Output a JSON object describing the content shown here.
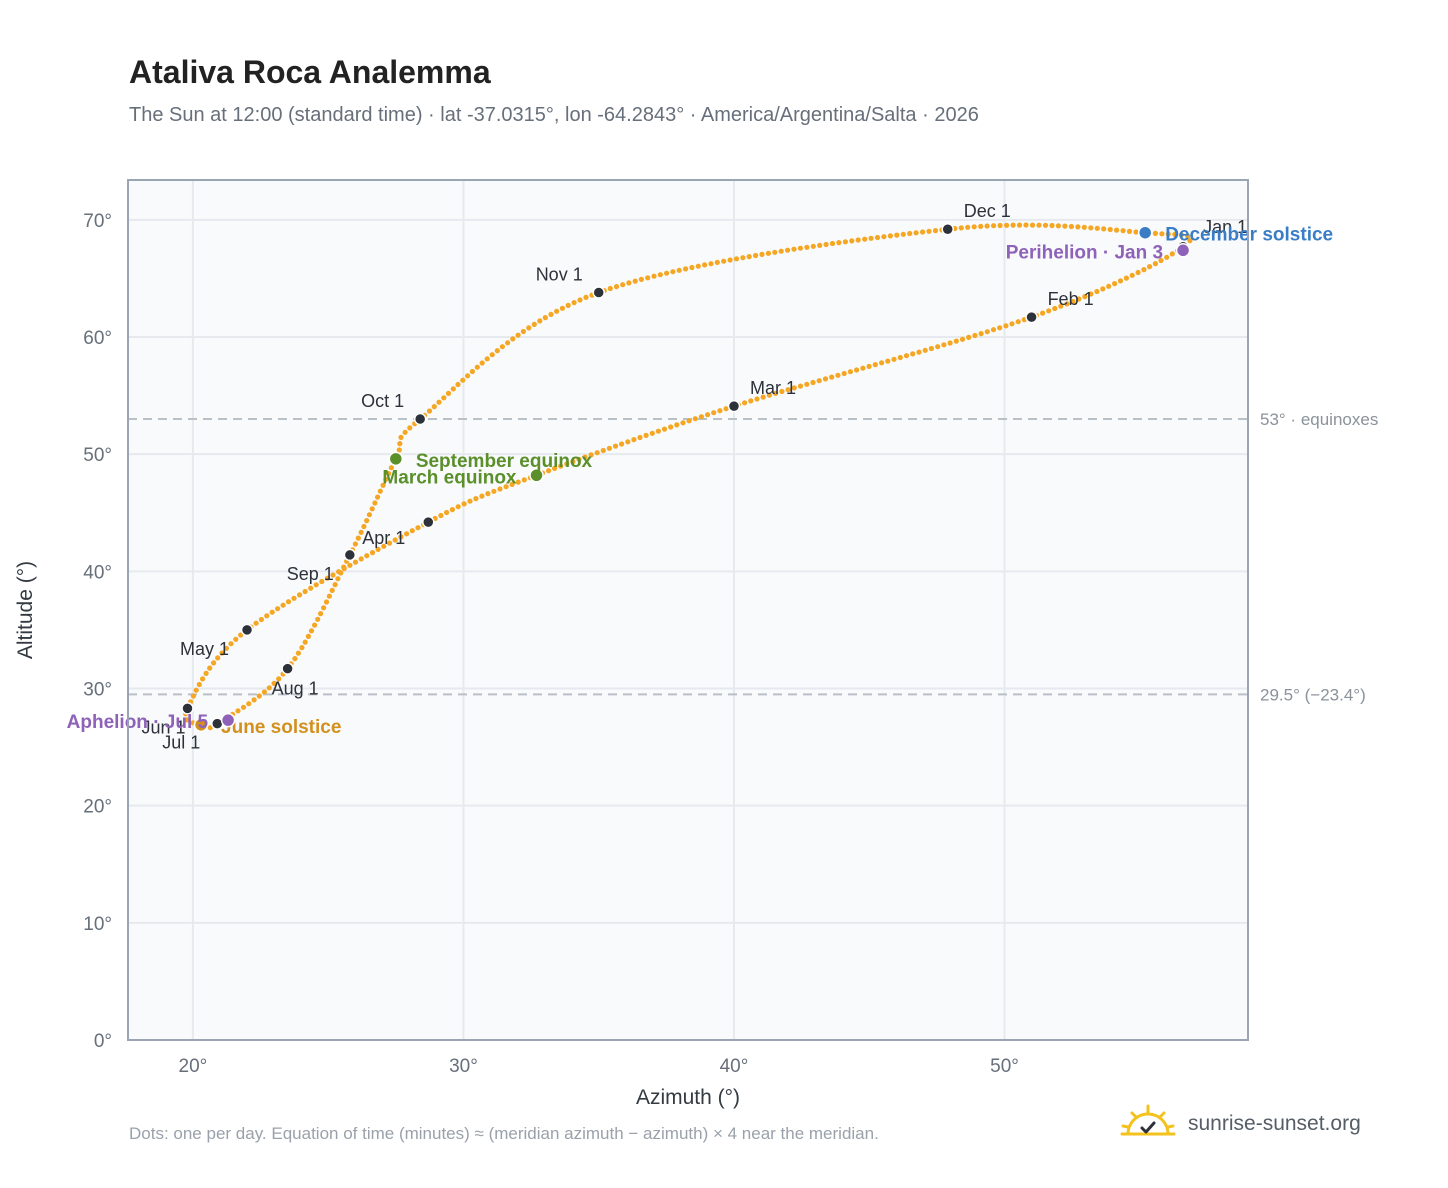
{
  "title": "Ataliva Roca Analemma",
  "subtitle": "The Sun at 12:00 (standard time) · lat -37.0315°, lon -64.2843° · America/Argentina/Salta · 2026",
  "footer_note": "Dots: one per day. Equation of time (minutes) ≈ (meridian azimuth − azimuth) × 4 near the meridian.",
  "brand": {
    "text": "sunrise-sunset.org",
    "icon": "sun-logo-icon"
  },
  "colors": {
    "curve": "#f5a623",
    "month_dot": "#2d3139",
    "equinox": "#5a8f2a",
    "december_solstice": "#3b7dc4",
    "june_solstice": "#d4901e",
    "apsis": "#8e62b8",
    "grid": "#e6eaee",
    "plot_bg": "#f8fafc",
    "frame": "#9aa4b2",
    "ref_line": "#b8c0c8"
  },
  "chart_data": {
    "type": "scatter",
    "xlabel": "Azimuth (°)",
    "ylabel": "Altitude (°)",
    "xlim": [
      17.6,
      59
    ],
    "ylim": [
      0,
      73.4
    ],
    "xticks": [
      {
        "value": 20,
        "label": "20°"
      },
      {
        "value": 30,
        "label": "30°"
      },
      {
        "value": 40,
        "label": "40°"
      },
      {
        "value": 50,
        "label": "50°"
      }
    ],
    "yticks": [
      {
        "value": 0,
        "label": "0°"
      },
      {
        "value": 10,
        "label": "10°"
      },
      {
        "value": 20,
        "label": "20°"
      },
      {
        "value": 30,
        "label": "30°"
      },
      {
        "value": 40,
        "label": "40°"
      },
      {
        "value": 50,
        "label": "50°"
      },
      {
        "value": 60,
        "label": "60°"
      },
      {
        "value": 70,
        "label": "70°"
      }
    ],
    "grid": true,
    "reference_lines": [
      {
        "y": 53,
        "label": "53° · equinoxes"
      },
      {
        "y": 29.5,
        "label": "29.5° (−23.4°)"
      }
    ],
    "month_markers": [
      {
        "label": "Jan 1",
        "x": 56.6,
        "y": 67.7
      },
      {
        "label": "Feb 1",
        "x": 51.0,
        "y": 61.7
      },
      {
        "label": "Mar 1",
        "x": 40.0,
        "y": 54.1
      },
      {
        "label": "Apr 1",
        "x": 28.7,
        "y": 44.2
      },
      {
        "label": "May 1",
        "x": 22.0,
        "y": 35.0
      },
      {
        "label": "Jun 1",
        "x": 19.8,
        "y": 28.3
      },
      {
        "label": "Jul 1",
        "x": 20.9,
        "y": 27.0
      },
      {
        "label": "Aug 1",
        "x": 23.5,
        "y": 31.7
      },
      {
        "label": "Sep 1",
        "x": 25.8,
        "y": 41.4
      },
      {
        "label": "Oct 1",
        "x": 28.4,
        "y": 53.0
      },
      {
        "label": "Nov 1",
        "x": 35.0,
        "y": 63.8
      },
      {
        "label": "Dec 1",
        "x": 47.9,
        "y": 69.2
      }
    ],
    "events": [
      {
        "label": "March equinox",
        "x": 32.7,
        "y": 48.2,
        "kind": "equinox"
      },
      {
        "label": "September equinox",
        "x": 27.5,
        "y": 49.6,
        "kind": "equinox"
      },
      {
        "label": "June solstice",
        "x": 20.3,
        "y": 26.9,
        "kind": "june"
      },
      {
        "label": "December solstice",
        "x": 55.2,
        "y": 68.9,
        "kind": "december"
      },
      {
        "label": "Aphelion · Jul 5",
        "x": 21.3,
        "y": 27.3,
        "kind": "apsis"
      },
      {
        "label": "Perihelion · Jan 3",
        "x": 56.6,
        "y": 67.4,
        "kind": "apsis"
      }
    ],
    "path_anchors": [
      {
        "x": 56.6,
        "y": 67.7
      },
      {
        "x": 51.0,
        "y": 61.7
      },
      {
        "x": 40.0,
        "y": 54.1
      },
      {
        "x": 32.7,
        "y": 48.2
      },
      {
        "x": 28.7,
        "y": 44.2
      },
      {
        "x": 22.0,
        "y": 35.0
      },
      {
        "x": 19.8,
        "y": 28.3
      },
      {
        "x": 20.3,
        "y": 26.9
      },
      {
        "x": 20.9,
        "y": 27.0
      },
      {
        "x": 23.5,
        "y": 31.7
      },
      {
        "x": 25.8,
        "y": 41.4
      },
      {
        "x": 27.5,
        "y": 49.6
      },
      {
        "x": 28.4,
        "y": 53.0
      },
      {
        "x": 35.0,
        "y": 63.8
      },
      {
        "x": 47.9,
        "y": 69.2
      },
      {
        "x": 55.2,
        "y": 68.9
      },
      {
        "x": 56.6,
        "y": 67.7
      }
    ]
  }
}
